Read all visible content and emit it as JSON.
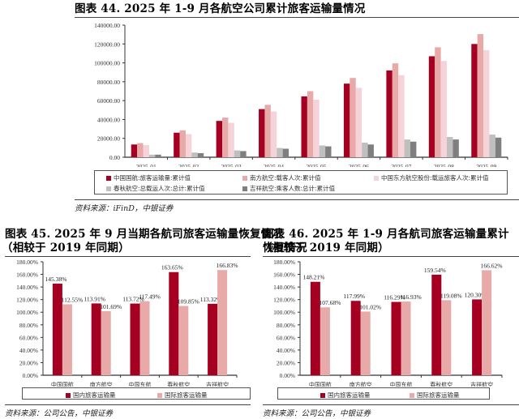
{
  "chart_data": [
    {
      "id": "fig44",
      "type": "bar",
      "title": "图表 44. 2025 年 1-9 月各航空公司累计旅客运输量情况",
      "source": "资料来源：iFinD，中银证券",
      "categories": [
        "2025-01",
        "2025-02",
        "2025-03",
        "2025-04",
        "2025-05",
        "2025-06",
        "2025-07",
        "2025-08",
        "2025-09"
      ],
      "y_ticks": [
        "0.00",
        "20000.00",
        "40000.00",
        "60000.00",
        "80000.00",
        "100000.00",
        "120000.00",
        "140000.00"
      ],
      "ylim": [
        0,
        140000
      ],
      "grid": false,
      "legend_position": "bottom",
      "series": [
        {
          "name": "中国国航:旅客运输量:累计值",
          "color": "#A50021",
          "values": [
            13500,
            26000,
            38500,
            51000,
            64500,
            78000,
            92000,
            107000,
            120000
          ]
        },
        {
          "name": "南方航空:载客人次:累计值",
          "color": "#E8A9A9",
          "values": [
            15000,
            28500,
            42000,
            55500,
            70000,
            84000,
            99500,
            116500,
            130500
          ]
        },
        {
          "name": "中国东方航空股份:载运旅客人次:累计值",
          "color": "#F6D3D9",
          "values": [
            12800,
            24500,
            36500,
            48500,
            61000,
            73500,
            87000,
            102000,
            113500
          ]
        },
        {
          "name": "春秋航空:总载运人次:总计:累计值",
          "color": "#BFBFBF",
          "values": [
            2700,
            5000,
            7200,
            9800,
            12500,
            15500,
            18800,
            21500,
            24000
          ]
        },
        {
          "name": "吉祥航空:乘客人数:总计:累计值",
          "color": "#7F7F7F",
          "values": [
            2700,
            4300,
            6500,
            9000,
            11500,
            13500,
            16500,
            18800,
            20800
          ]
        }
      ]
    },
    {
      "id": "fig45",
      "type": "bar",
      "title": "图表 45. 2025 年 9 月当期各航司旅客运输量恢复情况",
      "subtitle": "（相较于 2019 年同期）",
      "source": "资料来源：公司公告，中银证券",
      "categories": [
        "中国国航",
        "南方航空",
        "中国东航",
        "春秋航空",
        "吉祥航空"
      ],
      "y_ticks": [
        "0.00%",
        "20.00%",
        "40.00%",
        "60.00%",
        "80.00%",
        "100.00%",
        "120.00%",
        "140.00%",
        "160.00%",
        "180.00%"
      ],
      "ylim": [
        0,
        180
      ],
      "grid": false,
      "legend_position": "bottom",
      "series": [
        {
          "name": "国内旅客运输量",
          "color": "#A50021",
          "values": [
            145.38,
            113.91,
            113.72,
            163.65,
            113.32
          ],
          "labels": [
            "145.38%",
            "113.91%",
            "113.72%",
            "163.65%",
            "113.32%"
          ]
        },
        {
          "name": "国际旅客运输量",
          "color": "#E8A9A9",
          "values": [
            112.55,
            101.69,
            117.49,
            109.85,
            166.83
          ],
          "labels": [
            "112.55%",
            "101.69%",
            "117.49%",
            "109.85%",
            "166.83%"
          ]
        }
      ]
    },
    {
      "id": "fig46",
      "type": "bar",
      "title": "图表 46. 2025 年 1-9 月各航司旅客运输量累计恢复情况",
      "subtitle": "（相较于 2019 年同期）",
      "source": "资料来源：公司公告，中银证券",
      "categories": [
        "中国国航",
        "南方航空",
        "中国东航",
        "春秋航空",
        "吉祥航空"
      ],
      "y_ticks": [
        "0.00%",
        "20.00%",
        "40.00%",
        "60.00%",
        "80.00%",
        "100.00%",
        "120.00%",
        "140.00%",
        "160.00%",
        "180.00%"
      ],
      "ylim": [
        0,
        180
      ],
      "grid": false,
      "legend_position": "bottom",
      "series": [
        {
          "name": "国内旅客运输量",
          "color": "#A50021",
          "values": [
            148.21,
            117.99,
            116.29,
            159.54,
            120.3
          ],
          "labels": [
            "148.21%",
            "117.99%",
            "116.29%",
            "159.54%",
            "120.30%"
          ]
        },
        {
          "name": "国际旅客运输量",
          "color": "#E8A9A9",
          "values": [
            107.68,
            101.02,
            116.93,
            119.08,
            166.62
          ],
          "labels": [
            "107.68%",
            "101.02%",
            "116.93%",
            "119.08%",
            "166.62%"
          ]
        }
      ]
    }
  ]
}
